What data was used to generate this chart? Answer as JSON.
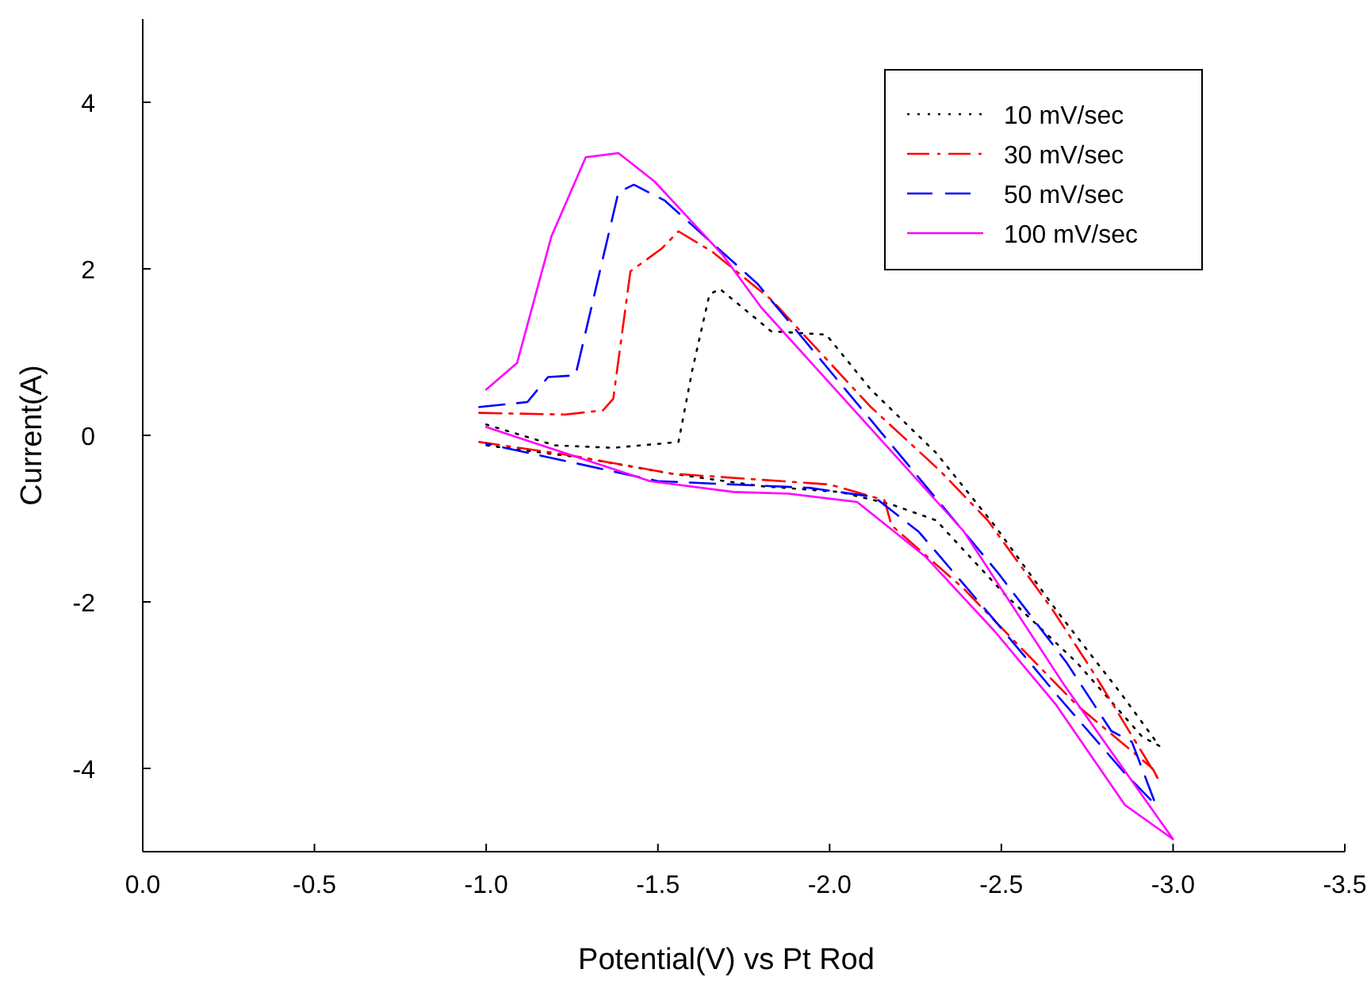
{
  "chart_data": {
    "type": "line",
    "xlabel": "Potential(V) vs Pt Rod",
    "ylabel": "Current(A)",
    "xlim": [
      0,
      -3.5
    ],
    "xticks": [
      {
        "value": 0,
        "label": "0.0"
      },
      {
        "value": -0.5,
        "label": "-0.5"
      },
      {
        "value": -1,
        "label": "-1.0"
      },
      {
        "value": -1.5,
        "label": "-1.5"
      },
      {
        "value": -2,
        "label": "-2.0"
      },
      {
        "value": -2.5,
        "label": "-2.5"
      },
      {
        "value": -3,
        "label": "-3.0"
      },
      {
        "value": -3.5,
        "label": "-3.5"
      }
    ],
    "ylim": [
      -5,
      5
    ],
    "yticks": [
      -4,
      -2,
      0,
      2,
      4
    ],
    "grid": false,
    "legend": "top right",
    "marker": "none",
    "series": [
      {
        "name": "10 mV/sec",
        "color": "#000000",
        "line_style": "dotted",
        "x": [
          -1.0,
          -1.2,
          -1.37,
          -1.56,
          -1.6,
          -1.65,
          -1.68,
          -1.83,
          -1.99,
          -2.12,
          -2.31,
          -2.48,
          -2.66,
          -2.85,
          -2.96,
          -2.91,
          -2.72,
          -2.51,
          -2.31,
          -2.18,
          -2.03,
          -1.8,
          -1.54,
          -1.28,
          -1.0
        ],
        "values": [
          0.13,
          -0.12,
          -0.15,
          -0.08,
          0.78,
          1.69,
          1.76,
          1.25,
          1.21,
          0.55,
          -0.21,
          -1.08,
          -2.1,
          -3.11,
          -3.73,
          -3.62,
          -2.73,
          -1.91,
          -1.02,
          -0.83,
          -0.68,
          -0.61,
          -0.46,
          -0.27,
          -0.12
        ]
      },
      {
        "name": "30 mV/sec",
        "color": "#ff0000",
        "line_style": "dashdot",
        "x": [
          -0.98,
          -1.23,
          -1.34,
          -1.37,
          -1.42,
          -1.51,
          -1.56,
          -1.66,
          -1.83,
          -2.12,
          -2.32,
          -2.46,
          -2.65,
          -2.77,
          -2.91,
          -2.96,
          -2.94,
          -2.72,
          -2.54,
          -2.39,
          -2.18,
          -2.16,
          -2.0,
          -1.86,
          -1.54,
          -1.23,
          -0.98
        ],
        "values": [
          0.27,
          0.25,
          0.3,
          0.44,
          1.97,
          2.24,
          2.45,
          2.2,
          1.63,
          0.34,
          -0.42,
          -1.02,
          -2.1,
          -2.86,
          -3.81,
          -4.15,
          -4.0,
          -3.24,
          -2.48,
          -1.84,
          -1.08,
          -0.78,
          -0.59,
          -0.55,
          -0.46,
          -0.23,
          -0.08
        ]
      },
      {
        "name": "50 mV/sec",
        "color": "#0000ff",
        "line_style": "dashed",
        "x": [
          -0.98,
          -1.12,
          -1.18,
          -1.26,
          -1.385,
          -1.43,
          -1.52,
          -1.79,
          -2.26,
          -2.49,
          -2.69,
          -2.82,
          -2.88,
          -2.95,
          -2.86,
          -2.66,
          -2.48,
          -2.26,
          -2.13,
          -1.94,
          -1.5,
          -1.0
        ],
        "values": [
          0.34,
          0.4,
          0.7,
          0.72,
          2.92,
          3.01,
          2.82,
          1.82,
          -0.51,
          -1.65,
          -2.73,
          -3.55,
          -3.68,
          -4.44,
          -4.06,
          -3.11,
          -2.22,
          -1.16,
          -0.74,
          -0.63,
          -0.55,
          -0.1
        ]
      },
      {
        "name": "100 mV/sec",
        "color": "#ff00ff",
        "line_style": "solid",
        "x": [
          -1.0,
          -1.477,
          -1.72,
          -1.88,
          -2.08,
          -2.28,
          -2.48,
          -2.66,
          -2.86,
          -3.0,
          -2.68,
          -2.39,
          -1.8,
          -1.69,
          -1.49,
          -1.385,
          -1.29,
          -1.19,
          -1.09,
          -1.0
        ],
        "values": [
          0.1,
          -0.55,
          -0.68,
          -0.7,
          -0.8,
          -1.46,
          -2.35,
          -3.24,
          -4.44,
          -4.85,
          -2.98,
          -1.15,
          1.54,
          2.16,
          3.05,
          3.39,
          3.34,
          2.39,
          0.87,
          0.55
        ]
      }
    ]
  }
}
